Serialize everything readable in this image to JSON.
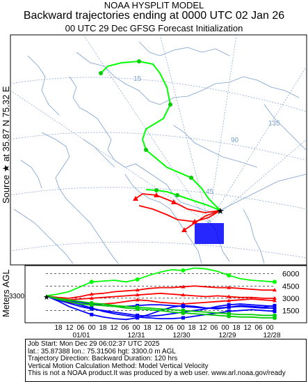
{
  "header": {
    "line1": "NOAA HYSPLIT MODEL",
    "line2": "Backward trajectories ending at 0000 UTC 02 Jan 26",
    "line3": "00 UTC 29 Dec    GFSG  Forecast Initialization"
  },
  "side_labels": {
    "source": "Source ★ at   35.87 N   75.32 E",
    "vertical": "Meters AGL"
  },
  "map_labels": {
    "lon_45": "45",
    "lon_90": "90",
    "lon_135": "135",
    "lon_15": "15"
  },
  "chart_data": {
    "type": "line",
    "title": "Backward trajectories ending at 0000 UTC 02 Jan 26",
    "ylabel": "Meters AGL",
    "start_height_label": "3300",
    "y_ticks": [
      "6000",
      "4500",
      "3000",
      "1500"
    ],
    "y_tick_values": [
      6000,
      4500,
      3000,
      1500
    ],
    "ylim": [
      0,
      7000
    ],
    "x_hour_ticks": [
      "18",
      "12",
      "06",
      "00",
      "18",
      "12",
      "06",
      "00",
      "18",
      "12",
      "06",
      "00",
      "18",
      "12",
      "06",
      "00",
      "18",
      "12",
      "06",
      "00"
    ],
    "x_date_ticks": [
      "01/01",
      "12/31",
      "12/30",
      "12/29",
      "12/28"
    ],
    "series_colors": [
      "#00cc00",
      "#ff0000",
      "#0000ff"
    ],
    "series": [
      {
        "color": "#00ff00",
        "values": [
          3300,
          3500,
          3800,
          4400,
          5000,
          5100,
          5200,
          5000,
          5300,
          5800,
          6200,
          6500,
          6400,
          6700,
          6600,
          6300,
          5800,
          5400,
          5200,
          5100,
          5000
        ]
      },
      {
        "color": "#ff0000",
        "values": [
          3300,
          3100,
          3000,
          3200,
          3500,
          3600,
          3800,
          3900,
          4000,
          4200,
          4300,
          4300,
          4400,
          4500,
          4400,
          4300,
          4300,
          4200,
          4100,
          4000,
          4000
        ]
      },
      {
        "color": "#ff0000",
        "values": [
          3300,
          3000,
          2800,
          2900,
          3000,
          3100,
          3200,
          3300,
          3400,
          3500,
          3600,
          3500,
          3400,
          3300,
          3200,
          3300,
          3200,
          3100,
          3100,
          3000,
          3000
        ]
      },
      {
        "color": "#ff0000",
        "values": [
          3300,
          2900,
          2500,
          2300,
          2200,
          2300,
          2400,
          2600,
          2800,
          2700,
          2500,
          2400,
          2300,
          2400,
          2500,
          2600,
          2700,
          2800,
          2900,
          2800,
          2700
        ]
      },
      {
        "color": "#0000ff",
        "values": [
          3300,
          2800,
          2400,
          2000,
          1700,
          1500,
          1300,
          1100,
          900,
          800,
          900,
          1100,
          1300,
          1500,
          1700,
          2000,
          2200,
          2300,
          2200,
          2100,
          2000
        ]
      },
      {
        "color": "#0000ff",
        "values": [
          3300,
          2700,
          2000,
          1500,
          1000,
          700,
          500,
          400,
          600,
          1000,
          1500,
          1900,
          2100,
          2000,
          1800,
          1700,
          1900,
          2100,
          2000,
          1900,
          2100
        ]
      },
      {
        "color": "#0000ff",
        "values": [
          3300,
          2900,
          2600,
          2200,
          1800,
          1400,
          1100,
          900,
          700,
          600,
          500,
          500,
          600,
          800,
          1000,
          1200,
          1400,
          1500,
          1600,
          1500,
          1400
        ]
      },
      {
        "color": "#0000ff",
        "values": [
          3300,
          3000,
          2700,
          2500,
          2300,
          2100,
          2000,
          2000,
          2100,
          2200,
          2200,
          2100,
          2000,
          1900,
          1800,
          1800,
          1900,
          2000,
          1900,
          1800,
          1800
        ]
      },
      {
        "color": "#00cc00",
        "values": [
          3300,
          2900,
          2600,
          2300,
          2200,
          2100,
          2000,
          1800,
          1700,
          1600,
          1500,
          1300,
          1200,
          1100,
          1000,
          900,
          800,
          700,
          700,
          600,
          600
        ]
      },
      {
        "color": "#00cc00",
        "values": [
          3300,
          3000,
          2800,
          2600,
          2400,
          2300,
          2100,
          2000,
          1900,
          1800,
          1700,
          1600,
          1500,
          1400,
          1300,
          1200,
          1100,
          1000,
          1000,
          900,
          900
        ]
      }
    ]
  },
  "footer": {
    "job_start": "Job Start: Mon Dec 29 06:02:37 UTC 2025",
    "location": "lat.: 35.87388    lon.: 75.31506    hgt: 3300.0 m AGL",
    "direction": "Trajectory Direction: Backward      Duration: 120 hrs",
    "vertical": "Vertical Motion Calculation Method: Model Vertical Velocity",
    "disclaimer": "This is not a NOAA product.It was produced by a web user. www.arl.noaa.gov/ready"
  }
}
